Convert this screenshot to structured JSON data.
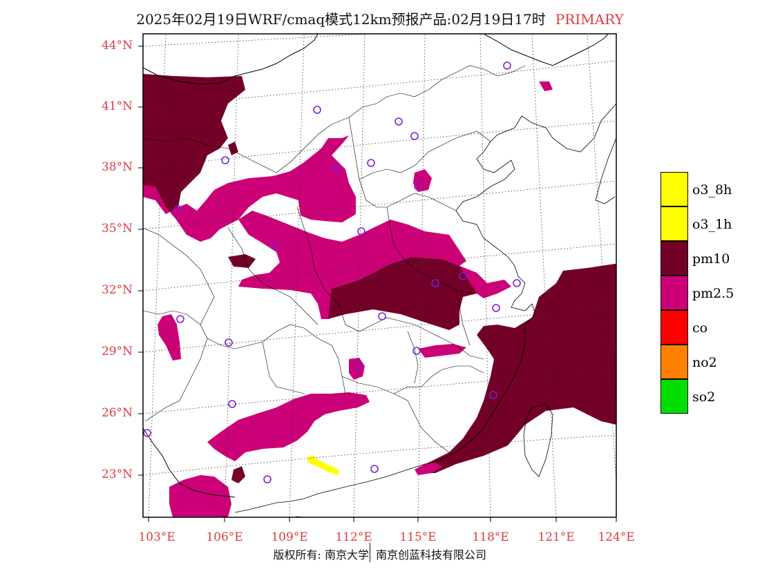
{
  "title": {
    "main": "2025年02月19日WRF/cmaq模式12km预报产品:02月19日17时",
    "tag": "PRIMARY"
  },
  "axes": {
    "lat_labels": [
      "44°N",
      "41°N",
      "38°N",
      "35°N",
      "32°N",
      "29°N",
      "26°N",
      "23°N"
    ],
    "lon_labels": [
      "103°E",
      "106°E",
      "109°E",
      "112°E",
      "115°E",
      "118°E",
      "121°E",
      "124°E"
    ]
  },
  "legend": {
    "items": [
      {
        "label": "o3_8h",
        "color": "#ffff00"
      },
      {
        "label": "o3_1h",
        "color": "#ffff00"
      },
      {
        "label": "pm10",
        "color": "#730028"
      },
      {
        "label": "pm2.5",
        "color": "#cc0077"
      },
      {
        "label": "co",
        "color": "#ff0000"
      },
      {
        "label": "no2",
        "color": "#ff7f00"
      },
      {
        "label": "so2",
        "color": "#00e000"
      }
    ]
  },
  "footer": {
    "copyright": "版权所有: 南京大学",
    "company": "南京创蓝科技有限公司"
  },
  "colors": {
    "pm10": "#730028",
    "pm25": "#cc0077",
    "o3": "#ffff00",
    "station": "#7a1fd6",
    "boundary": "#000000",
    "gridline": "#333333",
    "axis_text": "#e0393e"
  }
}
